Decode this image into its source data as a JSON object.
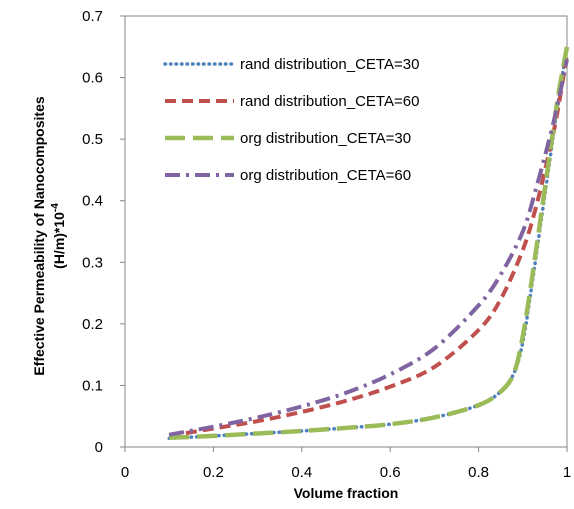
{
  "chart_data": {
    "type": "line",
    "xlabel": "Volume fraction",
    "ylabel_line1": "Effective Permeability of Nanocomposites",
    "ylabel_line2_main": "(H/m)*10",
    "ylabel_line2_sup": "-4",
    "xlim": [
      0,
      1
    ],
    "ylim": [
      0,
      0.7
    ],
    "xticks": [
      0,
      0.2,
      0.4,
      0.6,
      0.8,
      1
    ],
    "xtick_labels": [
      "0",
      "0.2",
      "0.4",
      "0.6",
      "0.8",
      "1"
    ],
    "yticks": [
      0,
      0.1,
      0.2,
      0.3,
      0.4,
      0.5,
      0.6,
      0.7
    ],
    "ytick_labels": [
      "0",
      "0.1",
      "0.2",
      "0.3",
      "0.4",
      "0.5",
      "0.6",
      "0.7"
    ],
    "grid": false,
    "legend_position": "top-left",
    "series": [
      {
        "name": "rand distribution_CETA=30",
        "color": "#4f81bd",
        "style": "dotted",
        "x": [
          0.1,
          0.2,
          0.3,
          0.4,
          0.5,
          0.6,
          0.7,
          0.8,
          0.85,
          0.88,
          0.9,
          0.92,
          0.94,
          0.96,
          0.98,
          1.0
        ],
        "y": [
          0.014,
          0.018,
          0.022,
          0.026,
          0.031,
          0.037,
          0.048,
          0.068,
          0.09,
          0.12,
          0.17,
          0.26,
          0.36,
          0.46,
          0.56,
          0.65
        ]
      },
      {
        "name": "rand distribution_CETA=60",
        "color": "#c0504d",
        "style": "dashed",
        "x": [
          0.1,
          0.2,
          0.3,
          0.4,
          0.5,
          0.6,
          0.7,
          0.8,
          0.85,
          0.9,
          0.93,
          0.96,
          0.98,
          1.0
        ],
        "y": [
          0.018,
          0.03,
          0.042,
          0.057,
          0.075,
          0.098,
          0.13,
          0.19,
          0.24,
          0.32,
          0.39,
          0.48,
          0.55,
          0.64
        ]
      },
      {
        "name": "org distribution_CETA=30",
        "color": "#9bbb59",
        "style": "long-dash",
        "x": [
          0.1,
          0.2,
          0.3,
          0.4,
          0.5,
          0.6,
          0.7,
          0.8,
          0.85,
          0.88,
          0.9,
          0.92,
          0.94,
          0.96,
          0.98,
          1.0
        ],
        "y": [
          0.015,
          0.018,
          0.022,
          0.026,
          0.031,
          0.037,
          0.048,
          0.068,
          0.09,
          0.12,
          0.18,
          0.27,
          0.37,
          0.47,
          0.57,
          0.65
        ]
      },
      {
        "name": "org distribution_CETA=60",
        "color": "#8064a2",
        "style": "dash-dot",
        "x": [
          0.1,
          0.2,
          0.3,
          0.4,
          0.5,
          0.6,
          0.7,
          0.8,
          0.85,
          0.9,
          0.93,
          0.96,
          0.98,
          1.0
        ],
        "y": [
          0.02,
          0.033,
          0.048,
          0.066,
          0.088,
          0.118,
          0.16,
          0.23,
          0.28,
          0.35,
          0.42,
          0.5,
          0.56,
          0.63
        ]
      }
    ]
  }
}
